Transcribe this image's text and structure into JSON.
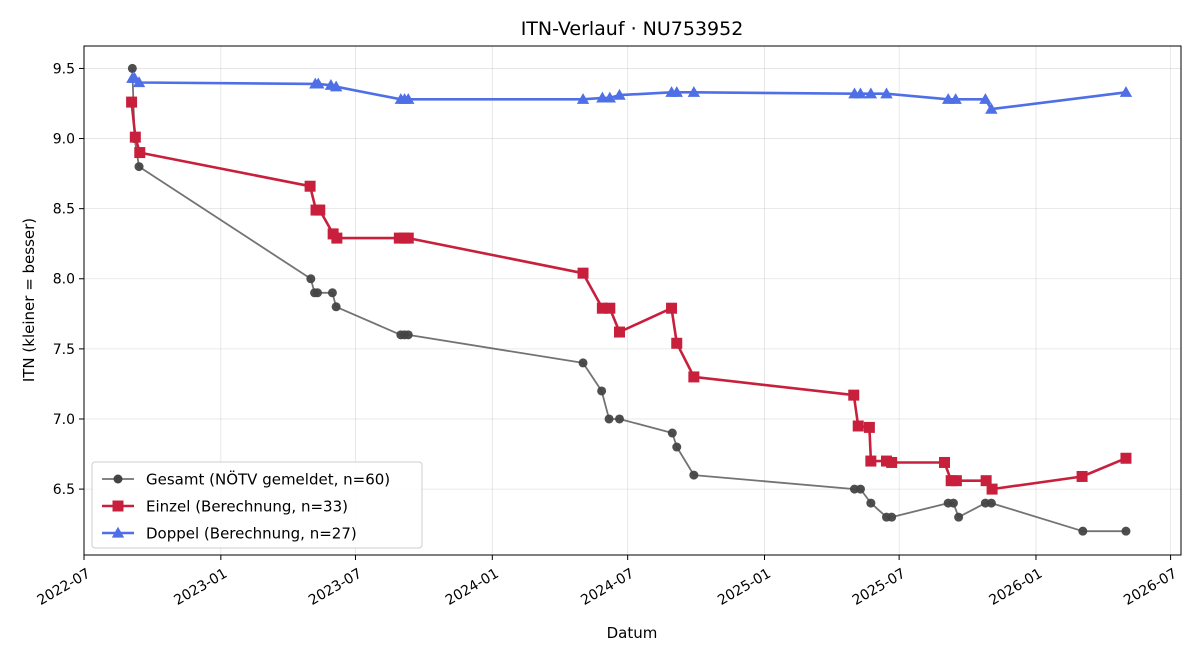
{
  "chart_data": {
    "type": "line",
    "title": "ITN-Verlauf · NU753952",
    "xlabel": "Datum",
    "ylabel": "ITN  (kleiner = besser)",
    "x_ticks": [
      "2022-07",
      "2023-01",
      "2023-07",
      "2024-01",
      "2024-07",
      "2025-01",
      "2025-07",
      "2026-01",
      "2026-07"
    ],
    "y_ticks": [
      "6.5",
      "7.0",
      "7.5",
      "8.0",
      "8.5",
      "9.0",
      "9.5"
    ],
    "xlim": [
      "2022-07-01",
      "2026-07-15"
    ],
    "ylim": [
      6.03,
      9.66
    ],
    "grid": true,
    "legend_position": "lower-left",
    "series": [
      {
        "name": "Gesamt (NÖTV gemeldet, n=60)",
        "color": "#444444",
        "marker": "circle",
        "points": [
          [
            "2022-09-04",
            9.5
          ],
          [
            "2022-09-07",
            9.0
          ],
          [
            "2022-09-13",
            8.8
          ],
          [
            "2023-05-02",
            8.0
          ],
          [
            "2023-05-07",
            7.9
          ],
          [
            "2023-05-11",
            7.9
          ],
          [
            "2023-05-31",
            7.9
          ],
          [
            "2023-06-05",
            7.8
          ],
          [
            "2023-08-31",
            7.6
          ],
          [
            "2023-09-05",
            7.6
          ],
          [
            "2023-09-10",
            7.6
          ],
          [
            "2024-05-02",
            7.4
          ],
          [
            "2024-05-27",
            7.2
          ],
          [
            "2024-06-06",
            7.0
          ],
          [
            "2024-06-20",
            7.0
          ],
          [
            "2024-08-30",
            6.9
          ],
          [
            "2024-09-05",
            6.8
          ],
          [
            "2024-09-28",
            6.6
          ],
          [
            "2025-05-02",
            6.5
          ],
          [
            "2025-05-10",
            6.5
          ],
          [
            "2025-05-24",
            6.4
          ],
          [
            "2025-06-14",
            6.3
          ],
          [
            "2025-06-21",
            6.3
          ],
          [
            "2025-09-05",
            6.4
          ],
          [
            "2025-09-12",
            6.4
          ],
          [
            "2025-09-19",
            6.3
          ],
          [
            "2025-10-25",
            6.4
          ],
          [
            "2025-11-02",
            6.4
          ],
          [
            "2026-03-05",
            6.2
          ],
          [
            "2026-05-02",
            6.2
          ]
        ]
      },
      {
        "name": "Einzel (Berechnung, n=33)",
        "color": "#c8203c",
        "marker": "square",
        "points": [
          [
            "2022-09-03",
            9.26
          ],
          [
            "2022-09-08",
            9.01
          ],
          [
            "2022-09-14",
            8.9
          ],
          [
            "2023-05-01",
            8.66
          ],
          [
            "2023-05-09",
            8.49
          ],
          [
            "2023-05-14",
            8.49
          ],
          [
            "2023-06-01",
            8.32
          ],
          [
            "2023-06-06",
            8.29
          ],
          [
            "2023-08-29",
            8.29
          ],
          [
            "2023-09-05",
            8.29
          ],
          [
            "2023-09-10",
            8.29
          ],
          [
            "2024-05-02",
            8.04
          ],
          [
            "2024-05-28",
            7.79
          ],
          [
            "2024-06-07",
            7.79
          ],
          [
            "2024-06-20",
            7.62
          ],
          [
            "2024-08-29",
            7.79
          ],
          [
            "2024-09-05",
            7.54
          ],
          [
            "2024-09-28",
            7.3
          ],
          [
            "2025-05-01",
            7.17
          ],
          [
            "2025-05-07",
            6.95
          ],
          [
            "2025-05-22",
            6.94
          ],
          [
            "2025-05-24",
            6.7
          ],
          [
            "2025-06-14",
            6.7
          ],
          [
            "2025-06-21",
            6.69
          ],
          [
            "2025-08-31",
            6.69
          ],
          [
            "2025-09-09",
            6.56
          ],
          [
            "2025-09-16",
            6.56
          ],
          [
            "2025-10-26",
            6.56
          ],
          [
            "2025-11-03",
            6.5
          ],
          [
            "2026-03-04",
            6.59
          ],
          [
            "2026-05-02",
            6.72
          ]
        ]
      },
      {
        "name": "Doppel (Berechnung, n=27)",
        "color": "#4f6fe6",
        "marker": "triangle",
        "points": [
          [
            "2022-09-04",
            9.43
          ],
          [
            "2022-09-07",
            9.43
          ],
          [
            "2022-09-13",
            9.4
          ],
          [
            "2023-05-08",
            9.39
          ],
          [
            "2023-05-12",
            9.39
          ],
          [
            "2023-05-29",
            9.38
          ],
          [
            "2023-06-05",
            9.37
          ],
          [
            "2023-08-31",
            9.28
          ],
          [
            "2023-09-05",
            9.28
          ],
          [
            "2023-09-10",
            9.28
          ],
          [
            "2024-05-02",
            9.28
          ],
          [
            "2024-05-28",
            9.29
          ],
          [
            "2024-06-07",
            9.29
          ],
          [
            "2024-06-20",
            9.31
          ],
          [
            "2024-08-29",
            9.33
          ],
          [
            "2024-09-05",
            9.33
          ],
          [
            "2024-09-28",
            9.33
          ],
          [
            "2025-05-02",
            9.32
          ],
          [
            "2025-05-10",
            9.32
          ],
          [
            "2025-05-24",
            9.32
          ],
          [
            "2025-06-14",
            9.32
          ],
          [
            "2025-09-05",
            9.28
          ],
          [
            "2025-09-15",
            9.28
          ],
          [
            "2025-10-25",
            9.28
          ],
          [
            "2025-11-02",
            9.21
          ],
          [
            "2026-05-02",
            9.33
          ]
        ]
      }
    ]
  }
}
